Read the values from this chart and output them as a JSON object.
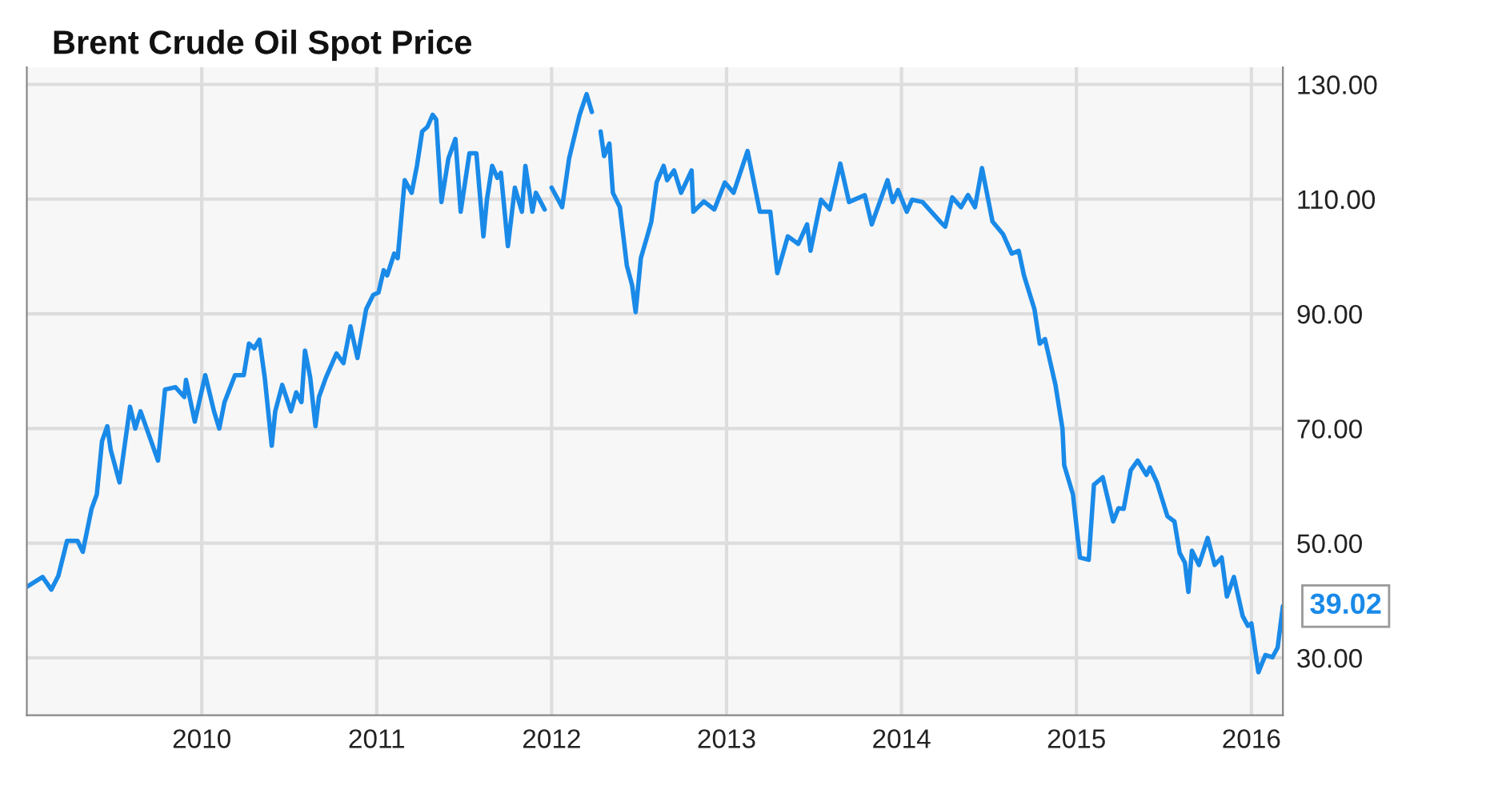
{
  "chart_data": {
    "type": "line",
    "title": "Brent Crude Oil Spot Price",
    "x": [
      2009.0,
      2009.09,
      2009.14,
      2009.18,
      2009.23,
      2009.29,
      2009.32,
      2009.37,
      2009.4,
      2009.43,
      2009.46,
      2009.48,
      2009.53,
      2009.59,
      2009.62,
      2009.65,
      2009.75,
      2009.79,
      2009.85,
      2009.9,
      2009.91,
      2009.96,
      2010.02,
      2010.07,
      2010.1,
      2010.13,
      2010.19,
      2010.24,
      2010.27,
      2010.3,
      2010.33,
      2010.36,
      2010.4,
      2010.42,
      2010.46,
      2010.51,
      2010.54,
      2010.57,
      2010.59,
      2010.62,
      2010.65,
      2010.67,
      2010.71,
      2010.77,
      2010.81,
      2010.85,
      2010.89,
      2010.94,
      2010.98,
      2011.01,
      2011.04,
      2011.06,
      2011.1,
      2011.12,
      2011.16,
      2011.2,
      2011.23,
      2011.26,
      2011.29,
      2011.32,
      2011.34,
      2011.37,
      2011.41,
      2011.45,
      2011.48,
      2011.53,
      2011.57,
      2011.61,
      2011.63,
      2011.66,
      2011.69,
      2011.71,
      2011.75,
      2011.79,
      2011.83,
      2011.85,
      2011.89,
      2011.91,
      2011.96,
      2011.98,
      2012.0,
      2012.06,
      2012.1,
      2012.16,
      2012.2,
      2012.23,
      2012.25,
      2012.28,
      2012.3,
      2012.33,
      2012.35,
      2012.39,
      2012.43,
      2012.46,
      2012.48,
      2012.51,
      2012.55,
      2012.57,
      2012.6,
      2012.64,
      2012.66,
      2012.7,
      2012.74,
      2012.8,
      2012.81,
      2012.87,
      2012.93,
      2012.99,
      2013.04,
      2013.12,
      2013.19,
      2013.25,
      2013.29,
      2013.35,
      2013.41,
      2013.46,
      2013.48,
      2013.54,
      2013.59,
      2013.65,
      2013.7,
      2013.79,
      2013.83,
      2013.92,
      2013.95,
      2013.98,
      2014.03,
      2014.06,
      2014.12,
      2014.22,
      2014.25,
      2014.29,
      2014.34,
      2014.38,
      2014.42,
      2014.46,
      2014.52,
      2014.58,
      2014.63,
      2014.67,
      2014.7,
      2014.76,
      2014.79,
      2014.82,
      2014.88,
      2014.92,
      2014.93,
      2014.98,
      2015.02,
      2015.07,
      2015.1,
      2015.15,
      2015.21,
      2015.24,
      2015.27,
      2015.31,
      2015.35,
      2015.4,
      2015.42,
      2015.46,
      2015.52,
      2015.56,
      2015.59,
      2015.62,
      2015.64,
      2015.66,
      2015.7,
      2015.75,
      2015.79,
      2015.83,
      2015.86,
      2015.9,
      2015.95,
      2015.98,
      2016.0,
      2016.04,
      2016.08,
      2016.12,
      2016.15,
      2016.18
    ],
    "series": [
      {
        "color": "#1a8ae8",
        "values": [
          42.4,
          44.1,
          41.9,
          44.3,
          50.4,
          50.4,
          48.5,
          56.0,
          58.5,
          67.8,
          70.4,
          66.2,
          60.6,
          73.8,
          70.0,
          73.0,
          64.4,
          76.8,
          77.2,
          75.5,
          78.5,
          71.2,
          79.3,
          73.0,
          70.0,
          74.6,
          79.3,
          79.3,
          84.8,
          84.0,
          85.5,
          78.9,
          67.0,
          73.0,
          77.6,
          73.0,
          76.3,
          74.6,
          83.6,
          78.9,
          70.4,
          75.5,
          78.9,
          83.1,
          81.4,
          87.8,
          82.3,
          90.8,
          93.3,
          93.7,
          97.6,
          96.7,
          100.5,
          99.7,
          113.3,
          111.1,
          115.8,
          121.8,
          122.6,
          124.7,
          123.9,
          109.5,
          117.1,
          120.5,
          107.8,
          118.0,
          118.0,
          103.5,
          109.9,
          115.8,
          113.7,
          114.6,
          101.8,
          112.0,
          107.8,
          115.8,
          107.8,
          111.1,
          108.2,
          null,
          112.0,
          108.6,
          117.1,
          124.7,
          128.3,
          125.2,
          null,
          121.8,
          117.5,
          119.7,
          111.1,
          108.6,
          98.4,
          95.0,
          90.3,
          99.7,
          103.9,
          106.1,
          112.9,
          115.8,
          113.3,
          115.0,
          111.1,
          115.0,
          107.8,
          109.6,
          108.2,
          112.9,
          111.1,
          118.4,
          107.8,
          107.8,
          97.1,
          103.5,
          102.2,
          105.6,
          101.0,
          109.9,
          108.2,
          116.2,
          109.5,
          110.7,
          105.6,
          113.3,
          109.5,
          111.6,
          107.8,
          109.9,
          109.5,
          106.1,
          105.2,
          110.3,
          108.6,
          110.7,
          108.6,
          115.4,
          106.1,
          103.9,
          100.5,
          101.0,
          96.7,
          90.8,
          84.8,
          85.6,
          77.6,
          70.0,
          63.6,
          58.5,
          47.5,
          47.1,
          60.2,
          61.5,
          53.8,
          56.1,
          56.0,
          62.7,
          64.4,
          61.9,
          63.2,
          60.6,
          54.7,
          53.8,
          48.3,
          46.6,
          41.5,
          48.7,
          46.2,
          50.9,
          46.2,
          47.5,
          40.7,
          44.1,
          37.3,
          35.6,
          36.0,
          27.5,
          30.5,
          30.1,
          31.8,
          39.02
        ]
      }
    ],
    "xlim": [
      2009.0,
      2016.18
    ],
    "xticks": [
      2010,
      2011,
      2012,
      2013,
      2014,
      2015,
      2016
    ],
    "ylim": [
      20,
      133
    ],
    "yticks": [
      {
        "value": 30,
        "label": "30.00"
      },
      {
        "value": 50,
        "label": "50.00"
      },
      {
        "value": 70,
        "label": "70.00"
      },
      {
        "value": 90,
        "label": "90.00"
      },
      {
        "value": 110,
        "label": "110.00"
      },
      {
        "value": 130,
        "label": "130.00"
      }
    ],
    "annotations": [
      {
        "text": "39.02",
        "x": 2016.18,
        "y": 39.02
      }
    ],
    "grid": true,
    "legend": false,
    "marker": "none",
    "line_style": "solid"
  }
}
